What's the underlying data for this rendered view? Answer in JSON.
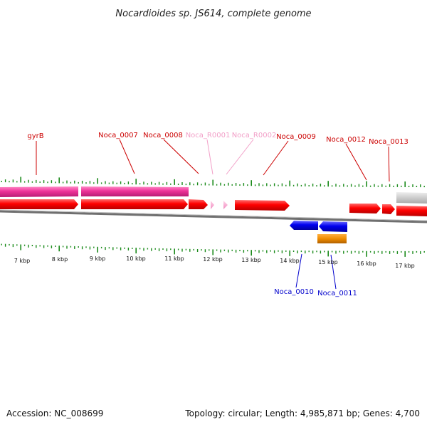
{
  "title": "Nocardioides sp. JS614, complete genome",
  "footer": {
    "accession": "Accession: NC_008699",
    "summary": "Topology: circular; Length: 4,985,871 bp; Genes: 4,700"
  },
  "scale_labels": [
    "7 kbp",
    "8 kbp",
    "9 kbp",
    "10 kbp",
    "11 kbp",
    "12 kbp",
    "13 kbp",
    "14 kbp",
    "15 kbp",
    "16 kbp",
    "17 kbp"
  ],
  "gene_labels": [
    {
      "text": "gyrB",
      "color": "#cc0000"
    },
    {
      "text": "Noca_0007",
      "color": "#cc0000"
    },
    {
      "text": "Noca_0008",
      "color": "#cc0000"
    },
    {
      "text": "Noca_R0001",
      "color": "#f2a0c8"
    },
    {
      "text": "Noca_R0002",
      "color": "#f2a0c8"
    },
    {
      "text": "Noca_0009",
      "color": "#cc0000"
    },
    {
      "text": "Noca_0012",
      "color": "#cc0000"
    },
    {
      "text": "Noca_0013",
      "color": "#cc0000"
    },
    {
      "text": "Noca_0010",
      "color": "#0000cc"
    },
    {
      "text": "Noca_0011",
      "color": "#0000cc"
    }
  ],
  "colors": {
    "forward_gene": "#ff0000",
    "reverse_gene": "#0000ee",
    "rrna": "#ee3399",
    "trna": "#f7a8cf",
    "misc_feature": "#f08c00",
    "grey_feature": "#c8c8c8",
    "tick": "#1a8a1a",
    "backbone": "#777777"
  }
}
